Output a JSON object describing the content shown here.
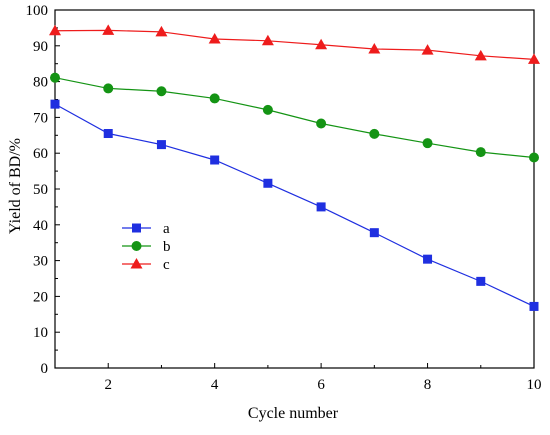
{
  "chart_data": {
    "type": "line",
    "title": "",
    "xlabel": "Cycle number",
    "ylabel": "Yield of BD/%",
    "xlim": [
      1,
      10
    ],
    "ylim": [
      0,
      100
    ],
    "x_ticks": [
      2,
      4,
      6,
      8,
      10
    ],
    "x_tick_labels": [
      "2",
      "4",
      "6",
      "8",
      "10"
    ],
    "y_ticks": [
      0,
      10,
      20,
      30,
      40,
      50,
      60,
      70,
      80,
      90,
      100
    ],
    "y_tick_labels": [
      "0",
      "10",
      "20",
      "30",
      "40",
      "50",
      "60",
      "70",
      "80",
      "90",
      "100"
    ],
    "grid": false,
    "legend_position": "center-left",
    "x": [
      1,
      2,
      3,
      4,
      5,
      6,
      7,
      8,
      9,
      10
    ],
    "series": [
      {
        "name": "a",
        "color": "#1f2fe0",
        "marker": "square",
        "values": [
          73.7,
          65.5,
          62.4,
          58.1,
          51.6,
          45.0,
          37.8,
          30.4,
          24.2,
          17.2
        ]
      },
      {
        "name": "b",
        "color": "#149414",
        "marker": "circle",
        "values": [
          81.1,
          78.1,
          77.3,
          75.3,
          72.1,
          68.3,
          65.4,
          62.8,
          60.3,
          58.8
        ]
      },
      {
        "name": "c",
        "color": "#ee1c1c",
        "marker": "triangle",
        "values": [
          94.2,
          94.3,
          93.9,
          91.9,
          91.4,
          90.3,
          89.1,
          88.8,
          87.2,
          86.2
        ]
      }
    ]
  }
}
